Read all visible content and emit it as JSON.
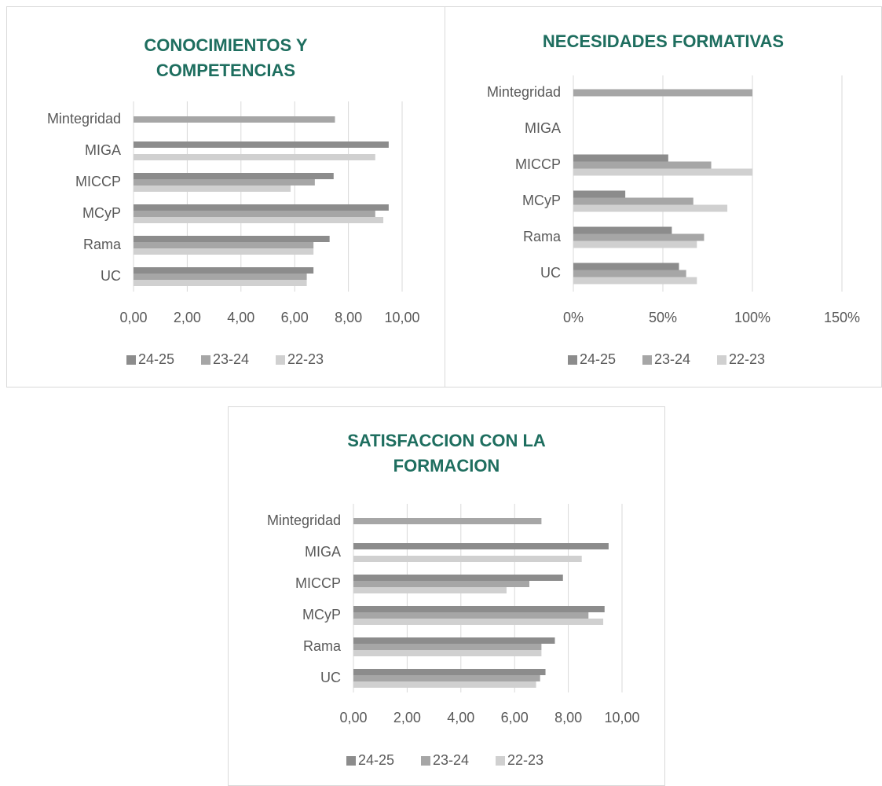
{
  "chart_data": [
    {
      "type": "bar",
      "orientation": "horizontal",
      "title": "CONOCIMIENTOS Y COMPETENCIAS",
      "categories": [
        "Mintegridad",
        "MIGA",
        "MICCP",
        "MCyP",
        "Rama",
        "UC"
      ],
      "series": [
        {
          "name": "24-25",
          "color": "#8c8c8c",
          "values": [
            null,
            9.5,
            7.45,
            9.5,
            7.3,
            6.7
          ]
        },
        {
          "name": "23-24",
          "color": "#a6a6a6",
          "values": [
            7.5,
            null,
            6.75,
            9.0,
            6.7,
            6.45
          ]
        },
        {
          "name": "22-23",
          "color": "#d0d0d0",
          "values": [
            null,
            9.0,
            5.85,
            9.3,
            6.7,
            6.45
          ]
        }
      ],
      "xlim": [
        0,
        10
      ],
      "xticks": [
        {
          "value": 0,
          "label": "0,00"
        },
        {
          "value": 2,
          "label": "2,00"
        },
        {
          "value": 4,
          "label": "4,00"
        },
        {
          "value": 6,
          "label": "6,00"
        },
        {
          "value": 8,
          "label": "8,00"
        },
        {
          "value": 10,
          "label": "10,00"
        }
      ],
      "grid": true,
      "legend": "bottom"
    },
    {
      "type": "bar",
      "orientation": "horizontal",
      "title": "NECESIDADES FORMATIVAS",
      "categories": [
        "Mintegridad",
        "MIGA",
        "MICCP",
        "MCyP",
        "Rama",
        "UC"
      ],
      "series": [
        {
          "name": "24-25",
          "color": "#8c8c8c",
          "values": [
            null,
            null,
            53,
            29,
            55,
            59
          ]
        },
        {
          "name": "23-24",
          "color": "#a6a6a6",
          "values": [
            100,
            null,
            77,
            67,
            73,
            63
          ]
        },
        {
          "name": "22-23",
          "color": "#d0d0d0",
          "values": [
            null,
            null,
            100,
            86,
            69,
            69
          ]
        }
      ],
      "xlim": [
        0,
        150
      ],
      "xticks": [
        {
          "value": 0,
          "label": "0%"
        },
        {
          "value": 50,
          "label": "50%"
        },
        {
          "value": 100,
          "label": "100%"
        },
        {
          "value": 150,
          "label": "150%"
        }
      ],
      "grid": true,
      "legend": "bottom"
    },
    {
      "type": "bar",
      "orientation": "horizontal",
      "title": "SATISFACCION CON LA FORMACION",
      "categories": [
        "Mintegridad",
        "MIGA",
        "MICCP",
        "MCyP",
        "Rama",
        "UC"
      ],
      "series": [
        {
          "name": "24-25",
          "color": "#8c8c8c",
          "values": [
            null,
            9.5,
            7.8,
            9.35,
            7.5,
            7.15
          ]
        },
        {
          "name": "23-24",
          "color": "#a6a6a6",
          "values": [
            7.0,
            null,
            6.55,
            8.75,
            7.0,
            6.95
          ]
        },
        {
          "name": "22-23",
          "color": "#d0d0d0",
          "values": [
            null,
            8.5,
            5.7,
            9.3,
            7.0,
            6.8
          ]
        }
      ],
      "xlim": [
        0,
        10
      ],
      "xticks": [
        {
          "value": 0,
          "label": "0,00"
        },
        {
          "value": 2,
          "label": "2,00"
        },
        {
          "value": 4,
          "label": "4,00"
        },
        {
          "value": 6,
          "label": "6,00"
        },
        {
          "value": 8,
          "label": "8,00"
        },
        {
          "value": 10,
          "label": "10,00"
        }
      ],
      "grid": true,
      "legend": "bottom"
    }
  ]
}
